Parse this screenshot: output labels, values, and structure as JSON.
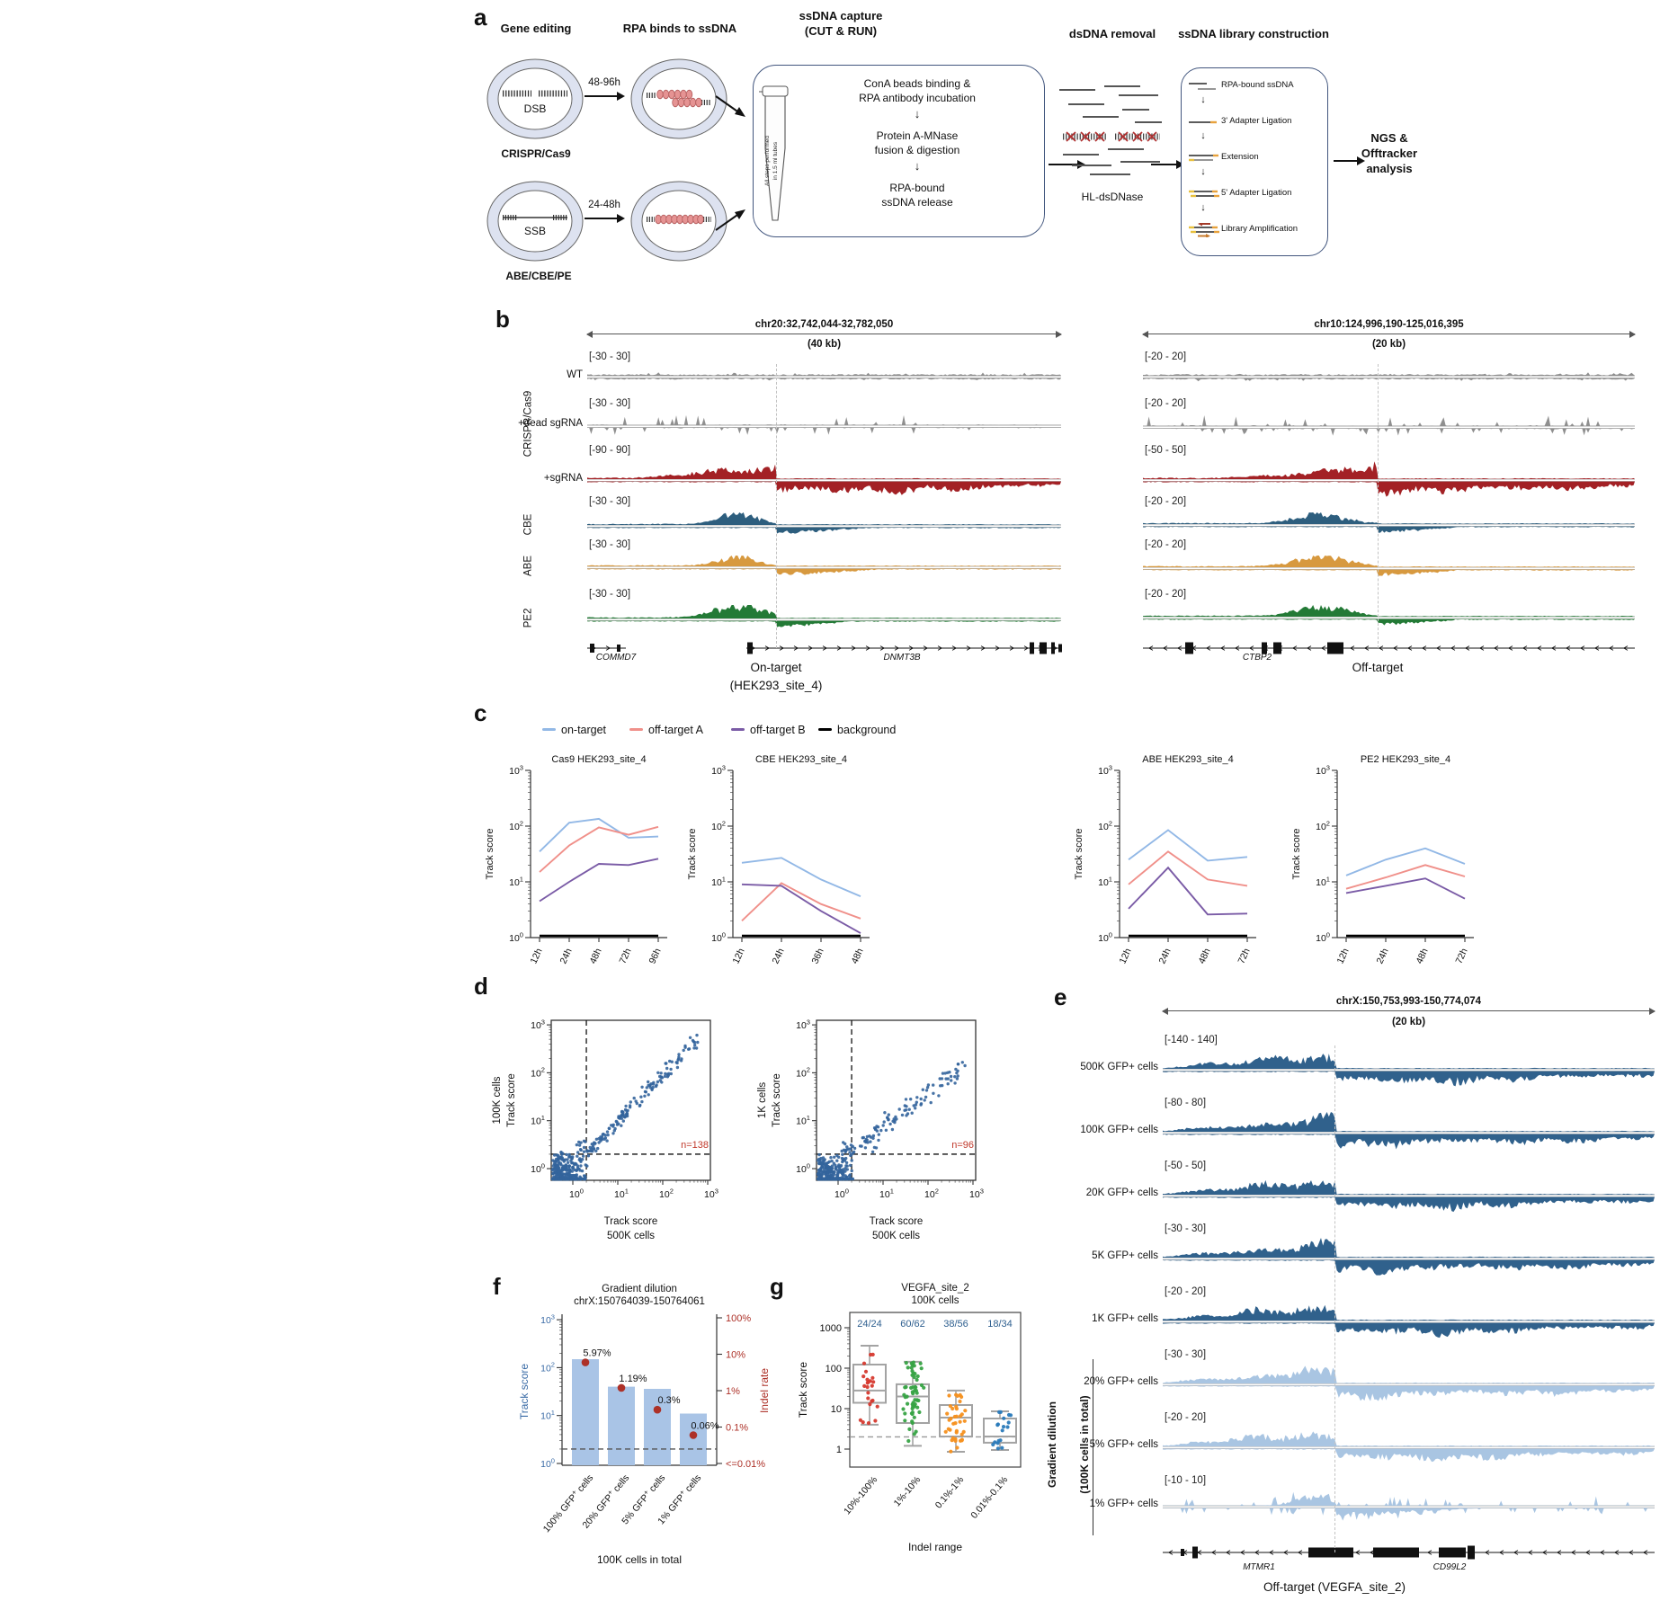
{
  "colors": {
    "wt_gray": "#8f8f8f",
    "cas9_red": "#a32125",
    "cbe_blue": "#2d5e7e",
    "abe_orange": "#d7993f",
    "pe2_green": "#237a36",
    "e_dark_blue": "#30618c",
    "e_light_blue": "#a9c5e2",
    "on_target": "#92b8e6",
    "off_target_a": "#f0908a",
    "off_target_b": "#7a5ba6",
    "background": "#000000",
    "scatter_blue": "#33649c",
    "bar_fill": "#a9c4e6",
    "axis_blue": "#3a6ba6",
    "indel_red": "#ad3128",
    "count_blue": "#2e5f8f",
    "cell_ring": "#dde2f0",
    "rpa_bead": "#e59393"
  },
  "panel_a": {
    "label": "a",
    "heading_gene_editing": "Gene editing",
    "heading_rpa": "RPA binds to ssDNA",
    "heading_capture_1": "ssDNA capture",
    "heading_capture_2": "(CUT & RUN)",
    "heading_dsdna": "dsDNA removal",
    "heading_library": "ssDNA library construction",
    "dsb_label": "DSB",
    "ssb_label": "SSB",
    "crispr_label": "CRISPR/Cas9",
    "be_label": "ABE/CBE/PE",
    "time_1": "48-96h",
    "time_2": "24-48h",
    "capture_step_1a": "ConA beads binding &",
    "capture_step_1b": "RPA antibody incubation",
    "capture_step_2a": "Protein A-MNase",
    "capture_step_2b": "fusion & digestion",
    "capture_step_3a": "RPA-bound",
    "capture_step_3b": "ssDNA release",
    "tube_note_1": "All steps performed",
    "tube_note_2": "in 1.5 ml tubes",
    "dsdnase_label": "HL-dsDNase",
    "library_steps": [
      "RPA-bound ssDNA",
      "3' Adapter Ligation",
      "Extension",
      "5' Adapter Ligation",
      "Library Amplification"
    ],
    "ngs_1": "NGS &",
    "ngs_2": "Offtracker",
    "ngs_3": "analysis",
    "arrow_down": "↓"
  },
  "panel_b": {
    "label": "b",
    "group_labels": [
      "CRISPR/Cas9",
      "CBE",
      "ABE",
      "PE2"
    ],
    "row_labels": [
      "WT",
      "+dead sgRNA",
      "+sgRNA"
    ],
    "loci": [
      {
        "title": "chr20:32,742,044-32,782,050",
        "scale_label": "(40 kb)",
        "track_ranges": [
          "[-30 - 30]",
          "[-30 - 30]",
          "[-90 - 90]",
          "[-30 - 30]",
          "[-30 - 30]",
          "[-30 - 30]"
        ],
        "gene_labels": [
          "COMMD7",
          "DNMT3B"
        ],
        "site_label_1": "On-target",
        "site_label_2": "(HEK293_site_4)"
      },
      {
        "title": "chr10:124,996,190-125,016,395",
        "scale_label": "(20 kb)",
        "track_ranges": [
          "[-20 - 20]",
          "[-20 - 20]",
          "[-50 - 50]",
          "[-20 - 20]",
          "[-20 - 20]",
          "[-20 - 20]"
        ],
        "gene_labels": [
          "CTBP2"
        ],
        "site_label_1": "Off-target",
        "site_label_2": ""
      }
    ]
  },
  "panel_e": {
    "label": "e",
    "title": "chrX:150,753,993-150,774,074",
    "scale_label": "(20 kb)",
    "tracks": [
      {
        "range": "[-140 - 140]",
        "label": "500K GFP+ cells",
        "group": "count"
      },
      {
        "range": "[-80 - 80]",
        "label": "100K GFP+ cells",
        "group": "count"
      },
      {
        "range": "[-50 - 50]",
        "label": "20K GFP+ cells",
        "group": "count"
      },
      {
        "range": "[-30 - 30]",
        "label": "5K GFP+ cells",
        "group": "count"
      },
      {
        "range": "[-20 - 20]",
        "label": "1K GFP+ cells",
        "group": "count"
      },
      {
        "range": "[-30 - 30]",
        "label": "20% GFP+ cells",
        "group": "dilution"
      },
      {
        "range": "[-20 - 20]",
        "label": "5% GFP+ cells",
        "group": "dilution"
      },
      {
        "range": "[-10 - 10]",
        "label": "1% GFP+ cells",
        "group": "dilution"
      }
    ],
    "bracket_label_1": "Gradient dilution",
    "bracket_label_2": "(100K cells in total)",
    "gene_labels": [
      "MTMR1",
      "CD99L2"
    ],
    "bottom_label": "Off-target (VEGFA_site_2)"
  },
  "panel_letters": {
    "c": "c",
    "d": "d",
    "f": "f",
    "g": "g"
  },
  "chart_data": [
    {
      "id": "panel_c",
      "type": "line",
      "ylabel": "Track score",
      "ylim": [
        1,
        1000
      ],
      "grid": false,
      "legend_position": "top",
      "legend": [
        {
          "label": "on-target",
          "color": "#92b8e6"
        },
        {
          "label": "off-target A",
          "color": "#f0908a"
        },
        {
          "label": "off-target B",
          "color": "#7a5ba6"
        },
        {
          "label": "background",
          "color": "#000000"
        }
      ],
      "charts": [
        {
          "title": "Cas9 HEK293_site_4",
          "x_ticks": [
            "12h",
            "24h",
            "48h",
            "72h",
            "96h"
          ],
          "series": [
            {
              "name": "on-target",
              "values": [
                35,
                115,
                135,
                62,
                65
              ]
            },
            {
              "name": "off-target A",
              "values": [
                15,
                45,
                95,
                70,
                97
              ]
            },
            {
              "name": "off-target B",
              "values": [
                4.5,
                10,
                21,
                20,
                26
              ]
            },
            {
              "name": "background",
              "values": [
                1,
                1,
                1,
                1,
                1
              ]
            }
          ]
        },
        {
          "title": "CBE HEK293_site_4",
          "x_ticks": [
            "12h",
            "24h",
            "36h",
            "48h"
          ],
          "series": [
            {
              "name": "on-target",
              "values": [
                22,
                27,
                11,
                5.5
              ]
            },
            {
              "name": "off-target A",
              "values": [
                2,
                9.5,
                4,
                2.2
              ]
            },
            {
              "name": "off-target B",
              "values": [
                9,
                8.5,
                3,
                1.2
              ]
            },
            {
              "name": "background",
              "values": [
                1,
                1,
                1,
                1
              ]
            }
          ]
        },
        {
          "title": "ABE HEK293_site_4",
          "x_ticks": [
            "12h",
            "24h",
            "48h",
            "72h"
          ],
          "series": [
            {
              "name": "on-target",
              "values": [
                25,
                85,
                24,
                28
              ]
            },
            {
              "name": "off-target A",
              "values": [
                9,
                35,
                11,
                8.5
              ]
            },
            {
              "name": "off-target B",
              "values": [
                3.3,
                18,
                2.6,
                2.7
              ]
            },
            {
              "name": "background",
              "values": [
                1,
                1,
                1,
                1
              ]
            }
          ]
        },
        {
          "title": "PE2 HEK293_site_4",
          "x_ticks": [
            "12h",
            "24h",
            "48h",
            "72h"
          ],
          "series": [
            {
              "name": "on-target",
              "values": [
                13,
                25,
                40,
                21
              ]
            },
            {
              "name": "off-target A",
              "values": [
                7.5,
                12,
                20,
                12.5
              ]
            },
            {
              "name": "off-target B",
              "values": [
                6.3,
                8.5,
                11.5,
                5
              ]
            },
            {
              "name": "background",
              "values": [
                1,
                1,
                1,
                1
              ]
            }
          ]
        }
      ]
    },
    {
      "id": "panel_d",
      "type": "scatter",
      "point_color": "#33649c",
      "plots": [
        {
          "xlabel_1": "Track score",
          "xlabel_2": "500K cells",
          "ylabel_1": "100K cells",
          "ylabel_2": "Track score",
          "n_label": "n=138",
          "n_points_above_threshold": 138,
          "threshold": 2,
          "xlim": [
            1,
            1000
          ],
          "ylim": [
            1,
            1000
          ]
        },
        {
          "xlabel_1": "Track score",
          "xlabel_2": "500K cells",
          "ylabel_1": "1K cells",
          "ylabel_2": "Track score",
          "n_label": "n=96",
          "n_points_above_threshold": 96,
          "threshold": 2,
          "xlim": [
            1,
            1000
          ],
          "ylim": [
            1,
            1000
          ]
        }
      ]
    },
    {
      "id": "panel_f",
      "type": "bar",
      "title_1": "Gradient dilution",
      "title_2": "chrX:150764039-150764061",
      "categories": [
        "100% GFP+ cells",
        "20% GFP+ cells",
        "5% GFP+ cells",
        "1% GFP+ cells"
      ],
      "track_scores": [
        150,
        40,
        36,
        11
      ],
      "indel_rate_labels": [
        "5.97%",
        "1.19%",
        "0.3%",
        "0.06%"
      ],
      "indel_rates": [
        5.97,
        1.19,
        0.3,
        0.06
      ],
      "ylabel_left": "Track score",
      "ylabel_right": "Indel rate",
      "yticks_right": [
        "100%",
        "10%",
        "1%",
        "0.1%",
        "<=0.01%"
      ],
      "xlabel": "100K cells in total",
      "ylim_left": [
        1,
        1000
      ],
      "threshold": 2
    },
    {
      "id": "panel_g",
      "type": "box",
      "title_1": "VEGFA_site_2",
      "title_2": "100K cells",
      "categories": [
        "10%-100%",
        "1%-10%",
        "0.1%-1%",
        "0.01%-0.1%"
      ],
      "counts": [
        "24/24",
        "60/62",
        "38/56",
        "18/34"
      ],
      "dot_colors": [
        "#d63a2f",
        "#37a345",
        "#f5901e",
        "#2b7bba"
      ],
      "boxes": [
        {
          "n": 24,
          "whisker_low": 4,
          "q1": 14,
          "median": 28,
          "q3": 123,
          "whisker_high": 360
        },
        {
          "n": 60,
          "whisker_low": 1.2,
          "q1": 4.4,
          "median": 20,
          "q3": 40,
          "whisker_high": 144
        },
        {
          "n": 38,
          "whisker_low": 0.86,
          "q1": 2.05,
          "median": 6,
          "q3": 12.3,
          "whisker_high": 28
        },
        {
          "n": 18,
          "whisker_low": 0.95,
          "q1": 1.44,
          "median": 2.05,
          "q3": 5.7,
          "whisker_high": 8.6
        }
      ],
      "ylabel": "Track score",
      "xlabel": "Indel range",
      "yticks": [
        1,
        10,
        100,
        1000
      ],
      "threshold": 2
    }
  ]
}
